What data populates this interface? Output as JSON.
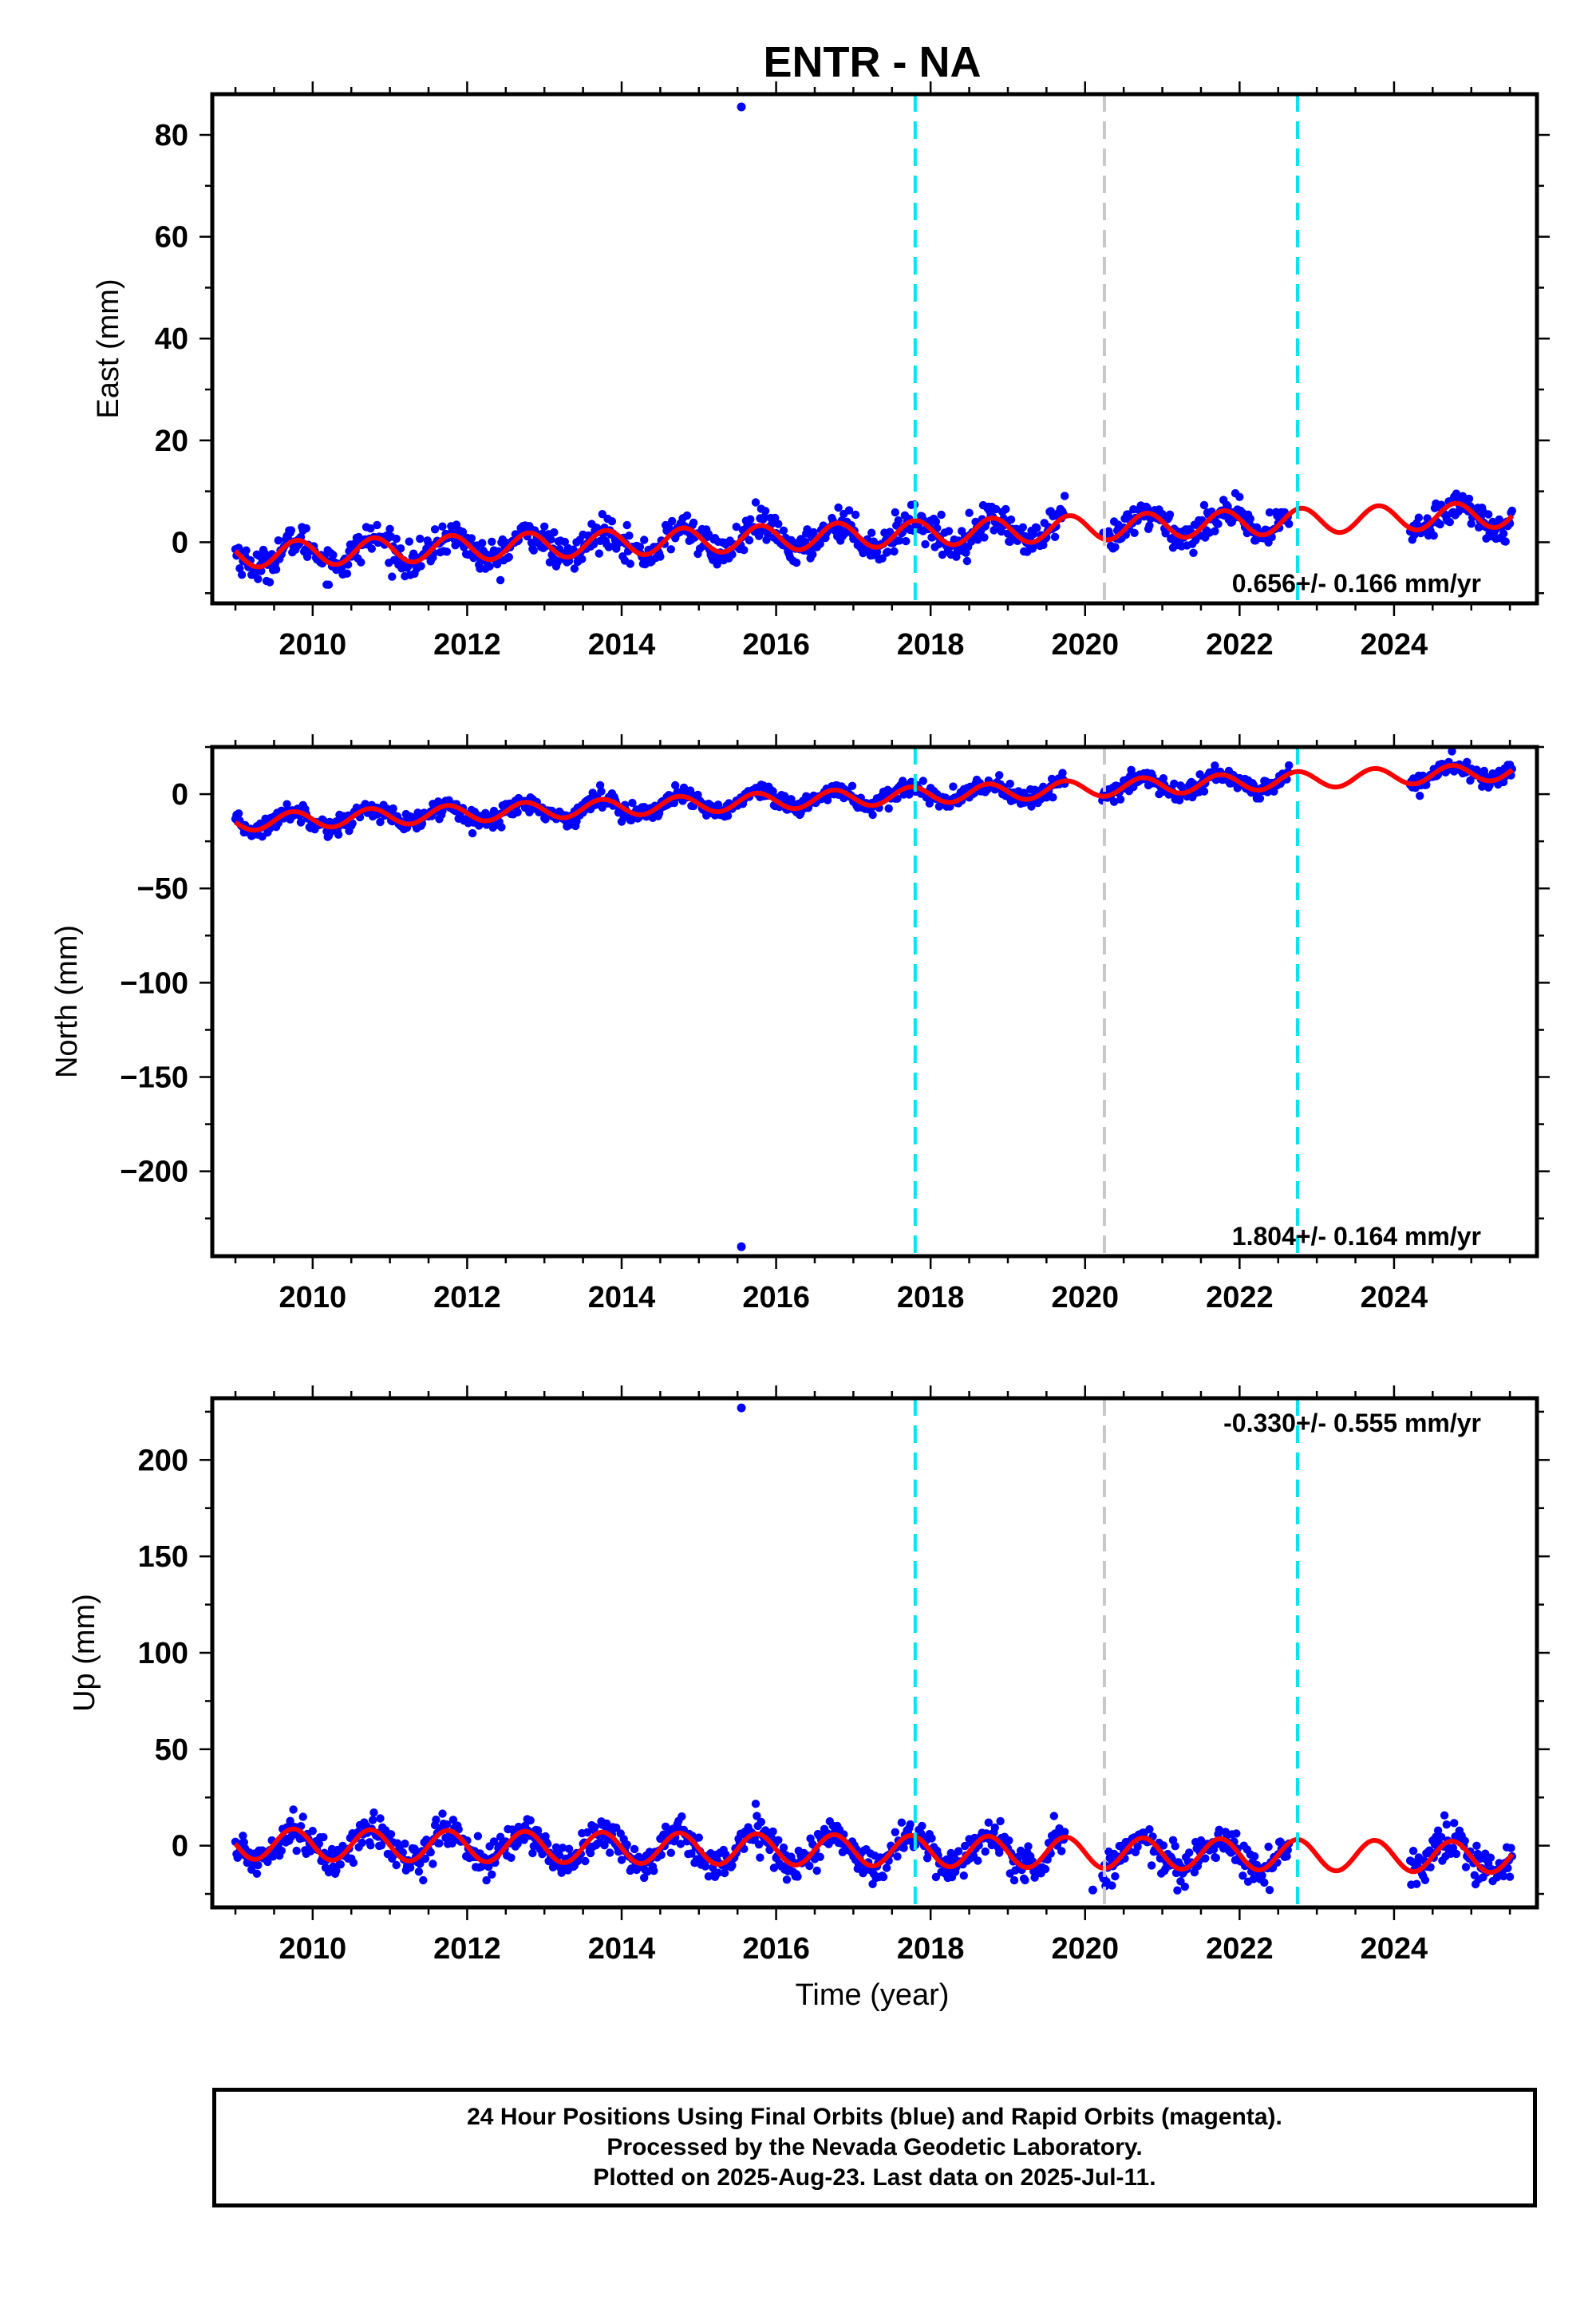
{
  "title": "ENTR - NA",
  "xlabel": "Time (year)",
  "colors": {
    "data": "#0000ff",
    "model": "#ff0000",
    "break_equipment": "#00e5ee",
    "break_other": "#c8c8c8",
    "frame": "#000000"
  },
  "footer": {
    "line1": "24 Hour Positions Using Final Orbits (blue) and Rapid Orbits (magenta).",
    "line2": "Processed by the Nevada Geodetic Laboratory.",
    "line3": "Plotted on 2025-Aug-23. Last data on 2025-Jul-11."
  },
  "chart_data": [
    {
      "type": "scatter",
      "component": "east",
      "ylabel": "East (mm)",
      "xlim": [
        2008.7,
        2025.85
      ],
      "ylim": [
        -12,
        88
      ],
      "xticks": [
        2010,
        2012,
        2014,
        2016,
        2018,
        2020,
        2022,
        2024
      ],
      "yticks": [
        0,
        20,
        40,
        60,
        80
      ],
      "rate_label": "0.656+/- 0.166 mm/yr",
      "rate_position": "bottom-right",
      "series": [
        {
          "name": "daily positions",
          "style": "points",
          "x_range": [
            2009.0,
            2025.53
          ],
          "gaps": [
            [
              2019.75,
              2020.22
            ],
            [
              2022.65,
              2024.2
            ]
          ],
          "trend_at_start": -2.5,
          "trend_at_end": 5.5,
          "annual_amplitude": 2.5,
          "annual_phase_peak": 0.8,
          "noise_sd": 1.6
        },
        {
          "name": "model fit",
          "style": "line",
          "x_range": [
            2009.0,
            2025.53
          ]
        }
      ],
      "outliers": [
        {
          "x": 2015.55,
          "y": 85.5
        }
      ],
      "breaks": [
        {
          "x": 2017.8,
          "kind": "equipment"
        },
        {
          "x": 2020.25,
          "kind": "other"
        },
        {
          "x": 2022.75,
          "kind": "equipment"
        }
      ]
    },
    {
      "type": "scatter",
      "component": "north",
      "ylabel": "North (mm)",
      "xlim": [
        2008.7,
        2025.85
      ],
      "ylim": [
        -245,
        25
      ],
      "xticks": [
        2010,
        2012,
        2014,
        2016,
        2018,
        2020,
        2022,
        2024
      ],
      "yticks": [
        0,
        -50,
        -100,
        -150,
        -200
      ],
      "rate_label": "1.804+/- 0.164 mm/yr",
      "rate_position": "bottom-right",
      "series": [
        {
          "name": "daily positions",
          "style": "points",
          "x_range": [
            2009.0,
            2025.53
          ],
          "gaps": [
            [
              2019.75,
              2020.22
            ],
            [
              2022.65,
              2024.2
            ]
          ],
          "trend_at_start": -15,
          "trend_at_end": 12,
          "annual_amplitude": 4.5,
          "annual_phase_peak": 0.75,
          "noise_sd": 2.5
        },
        {
          "name": "model fit",
          "style": "line",
          "x_range": [
            2009.0,
            2025.53
          ]
        }
      ],
      "outliers": [
        {
          "x": 2015.55,
          "y": -240
        }
      ],
      "breaks": [
        {
          "x": 2017.8,
          "kind": "equipment"
        },
        {
          "x": 2020.25,
          "kind": "other"
        },
        {
          "x": 2022.75,
          "kind": "equipment"
        }
      ]
    },
    {
      "type": "scatter",
      "component": "up",
      "ylabel": "Up (mm)",
      "xlim": [
        2008.7,
        2025.85
      ],
      "ylim": [
        -32,
        232
      ],
      "xticks": [
        2010,
        2012,
        2014,
        2016,
        2018,
        2020,
        2022,
        2024
      ],
      "yticks": [
        0,
        50,
        100,
        150,
        200
      ],
      "rate_label": "-0.330+/- 0.555 mm/yr",
      "rate_position": "top-right",
      "series": [
        {
          "name": "daily positions",
          "style": "points",
          "x_range": [
            2009.0,
            2025.53
          ],
          "gaps": [
            [
              2019.75,
              2020.22
            ],
            [
              2022.65,
              2024.2
            ]
          ],
          "trend_at_start": 1,
          "trend_at_end": -6,
          "annual_amplitude": 8,
          "annual_phase_peak": 0.75,
          "noise_sd": 4.5
        },
        {
          "name": "model fit",
          "style": "line",
          "x_range": [
            2009.0,
            2025.53
          ]
        }
      ],
      "outliers": [
        {
          "x": 2015.55,
          "y": 227
        },
        {
          "x": 2020.1,
          "y": -23
        }
      ],
      "breaks": [
        {
          "x": 2017.8,
          "kind": "equipment"
        },
        {
          "x": 2020.25,
          "kind": "other"
        },
        {
          "x": 2022.75,
          "kind": "equipment"
        }
      ]
    }
  ]
}
